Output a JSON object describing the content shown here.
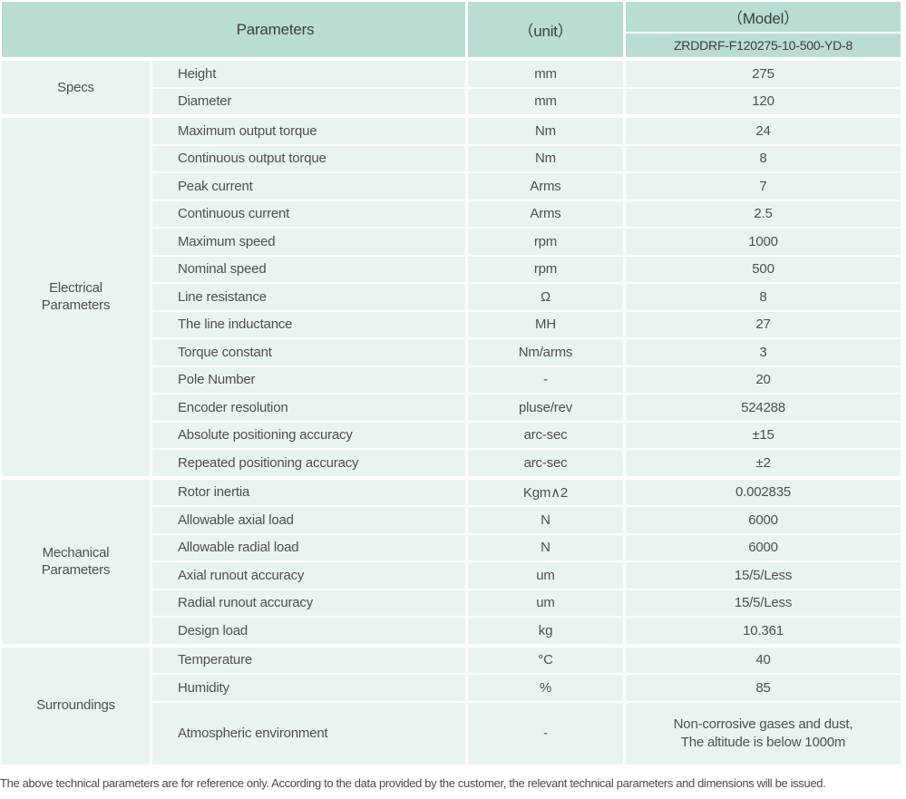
{
  "colors": {
    "header_bg": "#b9ddd3",
    "cell_bg": "#e9f4f1",
    "text": "#4f4f4f",
    "gap": "#ffffff"
  },
  "table": {
    "header": {
      "parameters": "Parameters",
      "unit": "（unit）",
      "model": "（Model）",
      "model_number": "ZRDDRF-F120275-10-500-YD-8"
    },
    "groups": [
      {
        "label": "Specs",
        "rows": [
          {
            "param": "Height",
            "unit": "mm",
            "value": "275"
          },
          {
            "param": "Diameter",
            "unit": "mm",
            "value": "120"
          }
        ]
      },
      {
        "label": "Electrical Parameters",
        "rows": [
          {
            "param": "Maximum output torque",
            "unit": "Nm",
            "value": "24"
          },
          {
            "param": "Continuous output torque",
            "unit": "Nm",
            "value": "8"
          },
          {
            "param": "Peak current",
            "unit": "Arms",
            "value": "7"
          },
          {
            "param": "Continuous current",
            "unit": "Arms",
            "value": "2.5"
          },
          {
            "param": "Maximum speed",
            "unit": "rpm",
            "value": "1000"
          },
          {
            "param": "Nominal speed",
            "unit": "rpm",
            "value": "500"
          },
          {
            "param": "Line resistance",
            "unit": "Ω",
            "value": "8"
          },
          {
            "param": "The line inductance",
            "unit": "MH",
            "value": "27"
          },
          {
            "param": "Torque constant",
            "unit": "Nm/arms",
            "value": "3"
          },
          {
            "param": "Pole Number",
            "unit": "-",
            "value": "20"
          },
          {
            "param": "Encoder resolution",
            "unit": "pluse/rev",
            "value": "524288"
          },
          {
            "param": "Absolute positioning accuracy",
            "unit": "arc-sec",
            "value": "±15"
          },
          {
            "param": "Repeated positioning accuracy",
            "unit": "arc-sec",
            "value": "±2"
          }
        ]
      },
      {
        "label": "Mechanical Parameters",
        "rows": [
          {
            "param": "Rotor inertia",
            "unit": "Kgm∧2",
            "value": "0.002835"
          },
          {
            "param": "Allowable axial load",
            "unit": "N",
            "value": "6000"
          },
          {
            "param": "Allowable radial load",
            "unit": "N",
            "value": "6000"
          },
          {
            "param": "Axial runout accuracy",
            "unit": "um",
            "value": "15/5/Less"
          },
          {
            "param": "Radial runout accuracy",
            "unit": "um",
            "value": "15/5/Less"
          },
          {
            "param": "Design load",
            "unit": "kg",
            "value": "10.361"
          }
        ]
      },
      {
        "label": "Surroundings",
        "rows": [
          {
            "param": "Temperature",
            "unit": "°C",
            "value": "40"
          },
          {
            "param": "Humidity",
            "unit": "%",
            "value": "85"
          },
          {
            "param": "Atmospheric environment",
            "unit": "-",
            "value": "Non-corrosive gases and dust,\nThe altitude is below 1000m"
          }
        ]
      }
    ],
    "footnote": "The above technical parameters are for reference only. According to the data provided by the customer, the relevant technical parameters and dimensions will be issued."
  }
}
